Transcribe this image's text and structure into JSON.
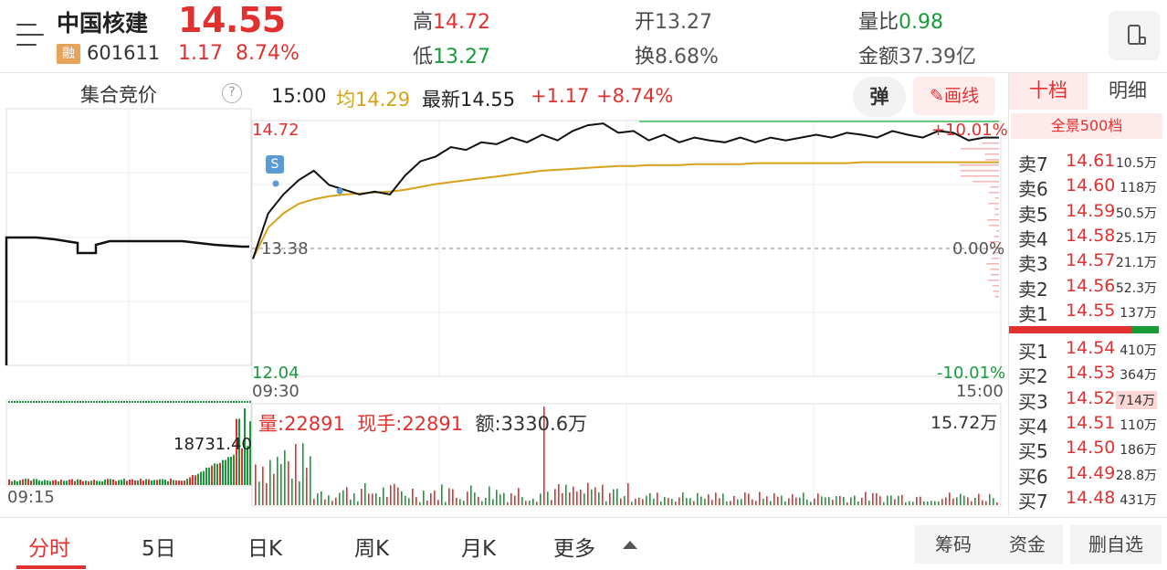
{
  "header": {
    "stock_name": "中国核建",
    "price": "14.55",
    "margin_badge": "融",
    "code": "601611",
    "change": "1.17",
    "change_pct": "8.74%",
    "high_label": "高",
    "high_value": "14.72",
    "low_label": "低",
    "low_value": "13.27",
    "open_label": "开",
    "open_value": "13.27",
    "turnover_label": "换",
    "turnover_value": "8.68%",
    "volume_ratio_label": "量比",
    "volume_ratio_value": "0.98",
    "amount_label": "金额",
    "amount_value": "37.39亿"
  },
  "auction": {
    "title": "集合竞价",
    "help": "?",
    "volume_label": "18731.40",
    "start_time": "09:15"
  },
  "info_bar": {
    "time": "15:00",
    "avg": "均14.29",
    "last": "最新14.55",
    "change": "+1.17",
    "change_pct": "+8.74%",
    "tan_label": "弹",
    "draw_label": "✎画线"
  },
  "chart_data": {
    "type": "line",
    "x_start": "09:30",
    "x_end": "15:00",
    "y_max_label": "14.72",
    "y_mid_label": "13.38",
    "y_min_label": "12.04",
    "pct_max_label": "+10.01%",
    "pct_mid_label": "0.00%",
    "pct_min_label": "-10.01%",
    "ylim": [
      12.04,
      14.72
    ],
    "marker": "S",
    "series": [
      {
        "values": [
          13.27,
          13.75,
          13.95,
          14.1,
          14.2,
          14.05,
          14.0,
          13.95,
          13.98,
          13.95,
          14.15,
          14.3,
          14.35,
          14.45,
          14.42,
          14.5,
          14.48,
          14.55,
          14.5,
          14.58,
          14.52,
          14.62,
          14.68,
          14.7,
          14.6,
          14.62,
          14.52,
          14.58,
          14.5,
          14.55,
          14.52,
          14.5,
          14.55,
          14.5,
          14.55,
          14.52,
          14.55,
          14.58,
          14.55,
          14.6,
          14.58,
          14.55,
          14.62,
          14.58,
          14.55,
          14.62,
          14.6,
          14.52,
          14.55,
          14.55
        ]
      },
      {
        "values": [
          13.27,
          13.6,
          13.75,
          13.85,
          13.9,
          13.93,
          13.95,
          13.96,
          13.97,
          13.98,
          14.0,
          14.03,
          14.06,
          14.08,
          14.1,
          14.12,
          14.14,
          14.16,
          14.18,
          14.2,
          14.21,
          14.22,
          14.23,
          14.24,
          14.25,
          14.25,
          14.26,
          14.26,
          14.26,
          14.27,
          14.27,
          14.27,
          14.27,
          14.28,
          14.28,
          14.28,
          14.28,
          14.28,
          14.28,
          14.28,
          14.29,
          14.29,
          14.29,
          14.29,
          14.29,
          14.29,
          14.29,
          14.29,
          14.29,
          14.29
        ]
      }
    ]
  },
  "volume_chart": {
    "volume": "量:22891",
    "current_hand": "现手:22891",
    "amount": "额:3330.6万",
    "max_label": "15.72万"
  },
  "order_book": {
    "tab_ten": "十档",
    "tab_detail": "明细",
    "all500": "全景500档",
    "sells": [
      {
        "label": "卖7",
        "price": "14.61",
        "vol": "10.5万"
      },
      {
        "label": "卖6",
        "price": "14.60",
        "vol": "118万"
      },
      {
        "label": "卖5",
        "price": "14.59",
        "vol": "50.5万"
      },
      {
        "label": "卖4",
        "price": "14.58",
        "vol": "25.1万"
      },
      {
        "label": "卖3",
        "price": "14.57",
        "vol": "21.1万"
      },
      {
        "label": "卖2",
        "price": "14.56",
        "vol": "52.3万"
      },
      {
        "label": "卖1",
        "price": "14.55",
        "vol": "137万"
      }
    ],
    "buys": [
      {
        "label": "买1",
        "price": "14.54",
        "vol": "410万"
      },
      {
        "label": "买2",
        "price": "14.53",
        "vol": "364万"
      },
      {
        "label": "买3",
        "price": "14.52",
        "vol": "714万"
      },
      {
        "label": "买4",
        "price": "14.51",
        "vol": "110万"
      },
      {
        "label": "买5",
        "price": "14.50",
        "vol": "186万"
      },
      {
        "label": "买6",
        "price": "14.49",
        "vol": "28.8万"
      },
      {
        "label": "买7",
        "price": "14.48",
        "vol": "431万"
      }
    ]
  },
  "nav": {
    "tabs": [
      "分时",
      "5日",
      "日K",
      "周K",
      "月K",
      "更多"
    ],
    "chip": "筹码",
    "fund": "资金",
    "remove": "删自选"
  }
}
